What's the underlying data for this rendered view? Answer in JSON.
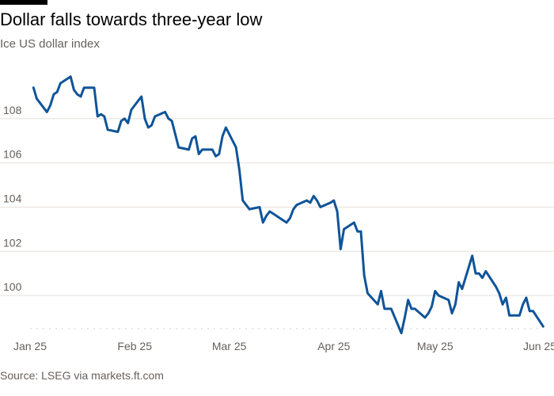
{
  "header": {
    "title": "Dollar falls towards three-year low",
    "subtitle": "Ice US dollar index"
  },
  "footer": {
    "source": "Source: LSEG via markets.ft.com"
  },
  "colors": {
    "line": "#0f5499",
    "grid": "#e6e1dc",
    "text": "#66605c"
  },
  "chart_data": {
    "type": "line",
    "title": "Dollar falls towards three-year low",
    "subtitle": "Ice US dollar index",
    "xlabel": "",
    "ylabel": "",
    "grid": true,
    "legend": "none",
    "x_ticks": [
      "Jan 25",
      "Feb 25",
      "Mar 25",
      "Apr 25",
      "May 25",
      "Jun 25"
    ],
    "y_ticks": [
      100,
      102,
      104,
      106,
      108
    ],
    "xlim": [
      "2025-01-01",
      "2025-06-01"
    ],
    "ylim": [
      98.5,
      110.5
    ],
    "series": [
      {
        "values": [
          [
            "2025-01-02",
            109.4
          ],
          [
            "2025-01-03",
            108.9
          ],
          [
            "2025-01-06",
            108.3
          ],
          [
            "2025-01-07",
            108.6
          ],
          [
            "2025-01-08",
            109.1
          ],
          [
            "2025-01-09",
            109.2
          ],
          [
            "2025-01-10",
            109.6
          ],
          [
            "2025-01-13",
            109.9
          ],
          [
            "2025-01-14",
            109.3
          ],
          [
            "2025-01-15",
            109.1
          ],
          [
            "2025-01-16",
            109.0
          ],
          [
            "2025-01-17",
            109.4
          ],
          [
            "2025-01-20",
            109.4
          ],
          [
            "2025-01-21",
            108.1
          ],
          [
            "2025-01-22",
            108.2
          ],
          [
            "2025-01-23",
            108.1
          ],
          [
            "2025-01-24",
            107.5
          ],
          [
            "2025-01-27",
            107.4
          ],
          [
            "2025-01-28",
            107.9
          ],
          [
            "2025-01-29",
            108.0
          ],
          [
            "2025-01-30",
            107.8
          ],
          [
            "2025-01-31",
            108.4
          ],
          [
            "2025-02-03",
            109.0
          ],
          [
            "2025-02-04",
            108.0
          ],
          [
            "2025-02-05",
            107.6
          ],
          [
            "2025-02-06",
            107.7
          ],
          [
            "2025-02-07",
            108.1
          ],
          [
            "2025-02-10",
            108.3
          ],
          [
            "2025-02-11",
            108.0
          ],
          [
            "2025-02-12",
            107.9
          ],
          [
            "2025-02-13",
            107.3
          ],
          [
            "2025-02-14",
            106.7
          ],
          [
            "2025-02-17",
            106.6
          ],
          [
            "2025-02-18",
            107.1
          ],
          [
            "2025-02-19",
            107.2
          ],
          [
            "2025-02-20",
            106.4
          ],
          [
            "2025-02-21",
            106.6
          ],
          [
            "2025-02-24",
            106.6
          ],
          [
            "2025-02-25",
            106.3
          ],
          [
            "2025-02-26",
            106.4
          ],
          [
            "2025-02-27",
            107.2
          ],
          [
            "2025-02-28",
            107.6
          ],
          [
            "2025-03-03",
            106.7
          ],
          [
            "2025-03-04",
            105.7
          ],
          [
            "2025-03-05",
            104.3
          ],
          [
            "2025-03-06",
            104.1
          ],
          [
            "2025-03-07",
            103.9
          ],
          [
            "2025-03-10",
            104.0
          ],
          [
            "2025-03-11",
            103.3
          ],
          [
            "2025-03-12",
            103.6
          ],
          [
            "2025-03-13",
            103.8
          ],
          [
            "2025-03-14",
            103.7
          ],
          [
            "2025-03-17",
            103.4
          ],
          [
            "2025-03-18",
            103.3
          ],
          [
            "2025-03-19",
            103.5
          ],
          [
            "2025-03-20",
            103.9
          ],
          [
            "2025-03-21",
            104.1
          ],
          [
            "2025-03-24",
            104.3
          ],
          [
            "2025-03-25",
            104.2
          ],
          [
            "2025-03-26",
            104.5
          ],
          [
            "2025-03-27",
            104.3
          ],
          [
            "2025-03-28",
            104.0
          ],
          [
            "2025-03-31",
            104.2
          ],
          [
            "2025-04-01",
            104.3
          ],
          [
            "2025-04-02",
            103.8
          ],
          [
            "2025-04-03",
            102.1
          ],
          [
            "2025-04-04",
            103.0
          ],
          [
            "2025-04-07",
            103.3
          ],
          [
            "2025-04-08",
            102.9
          ],
          [
            "2025-04-09",
            102.9
          ],
          [
            "2025-04-10",
            100.9
          ],
          [
            "2025-04-11",
            100.1
          ],
          [
            "2025-04-14",
            99.6
          ],
          [
            "2025-04-15",
            100.2
          ],
          [
            "2025-04-16",
            99.4
          ],
          [
            "2025-04-17",
            99.4
          ],
          [
            "2025-04-18",
            99.4
          ],
          [
            "2025-04-21",
            98.3
          ],
          [
            "2025-04-22",
            99.0
          ],
          [
            "2025-04-23",
            99.8
          ],
          [
            "2025-04-24",
            99.4
          ],
          [
            "2025-04-25",
            99.4
          ],
          [
            "2025-04-28",
            99.0
          ],
          [
            "2025-04-29",
            99.2
          ],
          [
            "2025-04-30",
            99.5
          ],
          [
            "2025-05-01",
            100.2
          ],
          [
            "2025-05-02",
            100.0
          ],
          [
            "2025-05-05",
            99.8
          ],
          [
            "2025-05-06",
            99.2
          ],
          [
            "2025-05-07",
            99.6
          ],
          [
            "2025-05-08",
            100.6
          ],
          [
            "2025-05-09",
            100.3
          ],
          [
            "2025-05-12",
            101.8
          ],
          [
            "2025-05-13",
            101.0
          ],
          [
            "2025-05-14",
            101.0
          ],
          [
            "2025-05-15",
            100.8
          ],
          [
            "2025-05-16",
            101.1
          ],
          [
            "2025-05-19",
            100.4
          ],
          [
            "2025-05-20",
            100.1
          ],
          [
            "2025-05-21",
            99.6
          ],
          [
            "2025-05-22",
            99.9
          ],
          [
            "2025-05-23",
            99.1
          ],
          [
            "2025-05-26",
            99.1
          ],
          [
            "2025-05-27",
            99.6
          ],
          [
            "2025-05-28",
            99.9
          ],
          [
            "2025-05-29",
            99.3
          ],
          [
            "2025-05-30",
            99.3
          ],
          [
            "2025-06-02",
            98.6
          ]
        ]
      }
    ]
  }
}
